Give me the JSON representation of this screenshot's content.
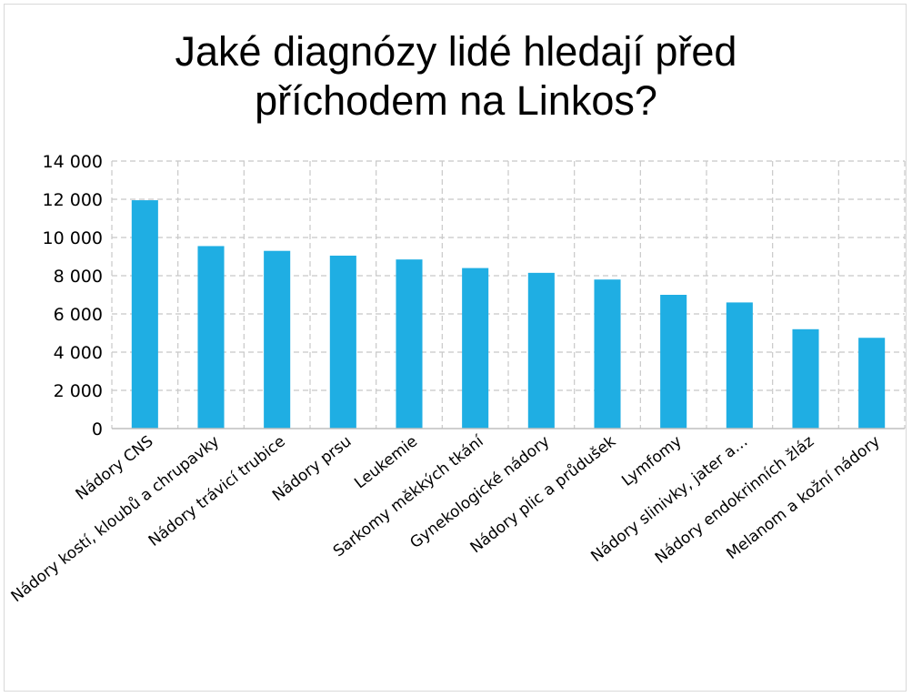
{
  "chart_data": {
    "type": "bar",
    "title_lines": [
      "Jaké diagnózy lidé hledají před",
      "příchodem na Linkos?"
    ],
    "categories": [
      "Nádory CNS",
      "Nádory kostí, kloubů a chrupavky",
      "Nádory trávicí trubice",
      "Nádory prsu",
      "Leukemie",
      "Sarkomy měkkých tkání",
      "Gynekologické nádory",
      "Nádory plic a průdušek",
      "Lymfomy",
      "Nádory slinivky, jater a…",
      "Nádory endokrinních žláz",
      "Melanom a kožní nádory"
    ],
    "values": [
      11950,
      9550,
      9300,
      9050,
      8850,
      8400,
      8150,
      7800,
      7000,
      6600,
      5200,
      4750
    ],
    "ylim": [
      0,
      14000
    ],
    "yticks": [
      0,
      2000,
      4000,
      6000,
      8000,
      10000,
      12000,
      14000
    ],
    "ytick_labels": [
      "0",
      "2 000",
      "4 000",
      "6 000",
      "8 000",
      "10 000",
      "12 000",
      "14 000"
    ],
    "grid": true,
    "bar_color": "#1faee3",
    "grid_color": "#c8c8c8"
  }
}
